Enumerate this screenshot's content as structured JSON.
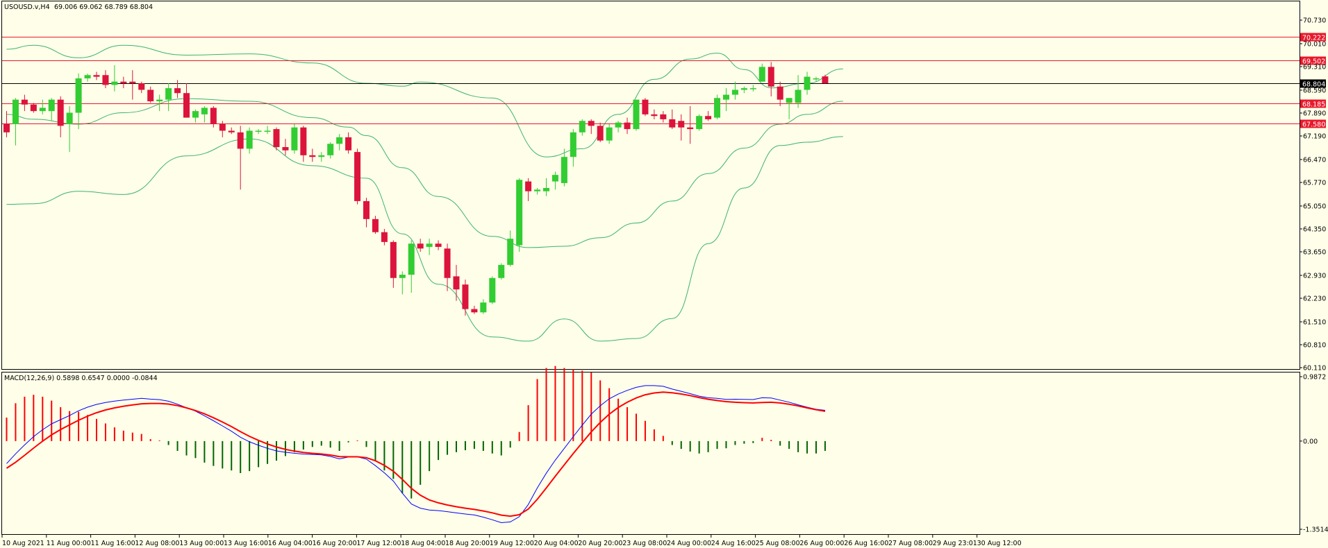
{
  "chart_header": {
    "symbol": "USOUSD.v,H4",
    "ohlc": "69.006 69.062 68.789 68.804"
  },
  "macd_header": {
    "label": "MACD(12,26,9) 0.5898 0.6547 0.0000 -0.0844"
  },
  "price_axis": {
    "ticks": [
      "70.730",
      "70.010",
      "69.310",
      "68.590",
      "67.890",
      "67.190",
      "66.470",
      "65.770",
      "65.050",
      "64.350",
      "63.650",
      "62.930",
      "62.230",
      "61.510",
      "60.810",
      "60.110"
    ]
  },
  "price_lines": [
    {
      "label": "70.222",
      "color": "#e8192c"
    },
    {
      "label": "69.502",
      "color": "#e8192c"
    },
    {
      "label": "68.804",
      "color": "#000000"
    },
    {
      "label": "68.185",
      "color": "#e8192c"
    },
    {
      "label": "67.580",
      "color": "#e8192c"
    }
  ],
  "macd_axis": {
    "ticks": [
      "0.9872",
      "0.00",
      "-1.3514"
    ]
  },
  "time_axis": {
    "labels": [
      "10 Aug 2021",
      "11 Aug 00:00",
      "11 Aug 16:00",
      "12 Aug 08:00",
      "13 Aug 00:00",
      "13 Aug 16:00",
      "16 Aug 04:00",
      "16 Aug 20:00",
      "17 Aug 12:00",
      "18 Aug 04:00",
      "18 Aug 20:00",
      "19 Aug 12:00",
      "20 Aug 04:00",
      "20 Aug 20:00",
      "23 Aug 08:00",
      "24 Aug 00:00",
      "24 Aug 16:00",
      "25 Aug 08:00",
      "26 Aug 00:00",
      "26 Aug 16:00",
      "27 Aug 08:00",
      "29 Aug 23:01",
      "30 Aug 12:00"
    ]
  },
  "colors": {
    "background": "#fefee9",
    "bull": "#32cd32",
    "bear": "#dc143c",
    "bands": "#3cb371",
    "macd_line": "#0000ff",
    "signal_line": "#ff0000",
    "hist_pos": "#ff0000",
    "hist_neg": "#006400"
  },
  "chart_data": {
    "type": "candlestick",
    "ylim": [
      60.11,
      70.73
    ],
    "candles": [
      {
        "o": 67.55,
        "h": 67.95,
        "l": 67.15,
        "c": 67.3
      },
      {
        "o": 67.55,
        "h": 68.35,
        "l": 66.9,
        "c": 68.3
      },
      {
        "o": 68.3,
        "h": 68.45,
        "l": 67.95,
        "c": 68.15
      },
      {
        "o": 68.15,
        "h": 68.2,
        "l": 67.9,
        "c": 67.95
      },
      {
        "o": 67.95,
        "h": 68.3,
        "l": 67.85,
        "c": 68.05
      },
      {
        "o": 67.95,
        "h": 68.35,
        "l": 67.65,
        "c": 68.3
      },
      {
        "o": 68.3,
        "h": 68.4,
        "l": 67.15,
        "c": 67.5
      },
      {
        "o": 67.55,
        "h": 68.1,
        "l": 66.7,
        "c": 67.9
      },
      {
        "o": 67.9,
        "h": 69.1,
        "l": 67.4,
        "c": 68.95
      },
      {
        "o": 68.95,
        "h": 69.1,
        "l": 68.85,
        "c": 69.05
      },
      {
        "o": 69.05,
        "h": 69.15,
        "l": 68.9,
        "c": 69.0
      },
      {
        "o": 69.05,
        "h": 69.2,
        "l": 68.65,
        "c": 68.75
      },
      {
        "o": 68.75,
        "h": 69.35,
        "l": 68.55,
        "c": 68.85
      },
      {
        "o": 68.85,
        "h": 69.0,
        "l": 68.65,
        "c": 68.8
      },
      {
        "o": 68.85,
        "h": 69.2,
        "l": 68.3,
        "c": 68.8
      },
      {
        "o": 68.8,
        "h": 68.85,
        "l": 68.5,
        "c": 68.6
      },
      {
        "o": 68.6,
        "h": 68.7,
        "l": 68.2,
        "c": 68.25
      },
      {
        "o": 68.25,
        "h": 68.45,
        "l": 67.95,
        "c": 68.3
      },
      {
        "o": 68.3,
        "h": 68.8,
        "l": 67.95,
        "c": 68.65
      },
      {
        "o": 68.65,
        "h": 68.9,
        "l": 68.35,
        "c": 68.5
      },
      {
        "o": 68.5,
        "h": 68.8,
        "l": 67.75,
        "c": 67.75
      },
      {
        "o": 67.75,
        "h": 68.0,
        "l": 67.6,
        "c": 67.95
      },
      {
        "o": 67.85,
        "h": 68.1,
        "l": 67.6,
        "c": 68.05
      },
      {
        "o": 68.05,
        "h": 68.1,
        "l": 67.45,
        "c": 67.55
      },
      {
        "o": 67.55,
        "h": 67.65,
        "l": 67.15,
        "c": 67.35
      },
      {
        "o": 67.35,
        "h": 67.45,
        "l": 67.25,
        "c": 67.3
      },
      {
        "o": 67.3,
        "h": 67.5,
        "l": 65.55,
        "c": 66.8
      },
      {
        "o": 66.8,
        "h": 67.45,
        "l": 66.65,
        "c": 67.35
      },
      {
        "o": 67.35,
        "h": 67.4,
        "l": 67.25,
        "c": 67.35
      },
      {
        "o": 67.35,
        "h": 67.5,
        "l": 67.25,
        "c": 67.35
      },
      {
        "o": 67.4,
        "h": 67.45,
        "l": 66.75,
        "c": 66.85
      },
      {
        "o": 66.85,
        "h": 67.1,
        "l": 66.6,
        "c": 66.75
      },
      {
        "o": 66.75,
        "h": 67.55,
        "l": 66.65,
        "c": 67.45
      },
      {
        "o": 67.45,
        "h": 67.5,
        "l": 66.4,
        "c": 66.6
      },
      {
        "o": 66.6,
        "h": 66.8,
        "l": 66.4,
        "c": 66.55
      },
      {
        "o": 66.55,
        "h": 66.7,
        "l": 66.4,
        "c": 66.6
      },
      {
        "o": 66.6,
        "h": 67.0,
        "l": 66.5,
        "c": 66.95
      },
      {
        "o": 66.95,
        "h": 67.25,
        "l": 66.75,
        "c": 67.15
      },
      {
        "o": 67.15,
        "h": 67.3,
        "l": 66.65,
        "c": 66.75
      },
      {
        "o": 66.7,
        "h": 66.8,
        "l": 65.1,
        "c": 65.2
      },
      {
        "o": 65.2,
        "h": 65.3,
        "l": 64.4,
        "c": 64.65
      },
      {
        "o": 64.65,
        "h": 64.75,
        "l": 64.2,
        "c": 64.25
      },
      {
        "o": 64.25,
        "h": 64.35,
        "l": 63.85,
        "c": 63.95
      },
      {
        "o": 63.95,
        "h": 64.0,
        "l": 62.55,
        "c": 62.85
      },
      {
        "o": 62.85,
        "h": 63.05,
        "l": 62.35,
        "c": 62.95
      },
      {
        "o": 62.95,
        "h": 64.0,
        "l": 62.4,
        "c": 63.9
      },
      {
        "o": 63.9,
        "h": 64.05,
        "l": 63.65,
        "c": 63.75
      },
      {
        "o": 63.8,
        "h": 64.05,
        "l": 63.55,
        "c": 63.9
      },
      {
        "o": 63.9,
        "h": 64.0,
        "l": 63.7,
        "c": 63.8
      },
      {
        "o": 63.75,
        "h": 63.9,
        "l": 62.45,
        "c": 62.85
      },
      {
        "o": 62.9,
        "h": 63.25,
        "l": 62.15,
        "c": 62.5
      },
      {
        "o": 62.65,
        "h": 62.8,
        "l": 61.7,
        "c": 61.9
      },
      {
        "o": 61.9,
        "h": 62.0,
        "l": 61.75,
        "c": 61.8
      },
      {
        "o": 61.8,
        "h": 62.2,
        "l": 61.75,
        "c": 62.1
      },
      {
        "o": 62.1,
        "h": 62.9,
        "l": 62.05,
        "c": 62.85
      },
      {
        "o": 62.85,
        "h": 63.3,
        "l": 62.8,
        "c": 63.25
      },
      {
        "o": 63.25,
        "h": 64.3,
        "l": 63.2,
        "c": 64.05
      },
      {
        "o": 63.85,
        "h": 65.9,
        "l": 63.65,
        "c": 65.85
      },
      {
        "o": 65.8,
        "h": 65.9,
        "l": 65.2,
        "c": 65.5
      },
      {
        "o": 65.5,
        "h": 65.6,
        "l": 65.4,
        "c": 65.55
      },
      {
        "o": 65.5,
        "h": 65.9,
        "l": 65.35,
        "c": 65.6
      },
      {
        "o": 65.8,
        "h": 66.1,
        "l": 65.55,
        "c": 66.0
      },
      {
        "o": 65.75,
        "h": 66.8,
        "l": 65.65,
        "c": 66.55
      },
      {
        "o": 66.55,
        "h": 67.4,
        "l": 66.25,
        "c": 67.3
      },
      {
        "o": 67.3,
        "h": 67.7,
        "l": 67.2,
        "c": 67.65
      },
      {
        "o": 67.65,
        "h": 67.7,
        "l": 67.25,
        "c": 67.5
      },
      {
        "o": 67.5,
        "h": 67.6,
        "l": 67.0,
        "c": 67.05
      },
      {
        "o": 67.05,
        "h": 67.55,
        "l": 66.95,
        "c": 67.45
      },
      {
        "o": 67.45,
        "h": 67.65,
        "l": 67.3,
        "c": 67.6
      },
      {
        "o": 67.6,
        "h": 67.75,
        "l": 67.25,
        "c": 67.4
      },
      {
        "o": 67.4,
        "h": 68.3,
        "l": 67.35,
        "c": 68.3
      },
      {
        "o": 68.3,
        "h": 68.35,
        "l": 67.8,
        "c": 67.85
      },
      {
        "o": 67.85,
        "h": 68.0,
        "l": 67.7,
        "c": 67.8
      },
      {
        "o": 67.85,
        "h": 67.95,
        "l": 67.6,
        "c": 67.7
      },
      {
        "o": 67.7,
        "h": 68.0,
        "l": 67.4,
        "c": 67.45
      },
      {
        "o": 67.65,
        "h": 67.85,
        "l": 67.05,
        "c": 67.45
      },
      {
        "o": 67.45,
        "h": 68.1,
        "l": 66.95,
        "c": 67.4
      },
      {
        "o": 67.4,
        "h": 67.85,
        "l": 67.35,
        "c": 67.8
      },
      {
        "o": 67.8,
        "h": 67.95,
        "l": 67.65,
        "c": 67.7
      },
      {
        "o": 67.75,
        "h": 68.45,
        "l": 67.7,
        "c": 68.35
      },
      {
        "o": 68.3,
        "h": 68.65,
        "l": 67.95,
        "c": 68.45
      },
      {
        "o": 68.45,
        "h": 68.85,
        "l": 68.3,
        "c": 68.6
      },
      {
        "o": 68.6,
        "h": 68.7,
        "l": 68.5,
        "c": 68.65
      },
      {
        "o": 68.65,
        "h": 68.75,
        "l": 68.55,
        "c": 68.65
      },
      {
        "o": 68.85,
        "h": 69.4,
        "l": 68.85,
        "c": 69.3
      },
      {
        "o": 69.3,
        "h": 69.45,
        "l": 68.4,
        "c": 68.7
      },
      {
        "o": 68.7,
        "h": 68.85,
        "l": 68.1,
        "c": 68.3
      },
      {
        "o": 68.2,
        "h": 68.35,
        "l": 67.7,
        "c": 68.35
      },
      {
        "o": 68.2,
        "h": 69.05,
        "l": 68.05,
        "c": 68.6
      },
      {
        "o": 68.6,
        "h": 69.15,
        "l": 68.45,
        "c": 69.0
      },
      {
        "o": 68.95,
        "h": 69.0,
        "l": 68.85,
        "c": 68.95
      },
      {
        "o": 69.01,
        "h": 69.06,
        "l": 68.79,
        "c": 68.8
      }
    ],
    "bb_upper": [
      [
        0,
        69.84
      ],
      [
        3,
        69.96
      ],
      [
        8,
        69.58
      ],
      [
        13,
        69.96
      ],
      [
        20,
        69.66
      ],
      [
        27,
        69.7
      ],
      [
        34,
        69.42
      ],
      [
        40,
        68.8
      ],
      [
        44,
        68.71
      ],
      [
        46,
        68.84
      ],
      [
        54,
        68.35
      ],
      [
        60,
        66.55
      ],
      [
        64,
        66.8
      ],
      [
        68,
        67.85
      ],
      [
        72,
        68.92
      ],
      [
        76,
        69.54
      ],
      [
        79,
        69.72
      ],
      [
        82,
        69.22
      ],
      [
        85,
        68.66
      ],
      [
        89,
        68.8
      ],
      [
        93,
        69.24
      ]
    ],
    "bb_middle": [
      [
        0,
        67.85
      ],
      [
        3,
        67.7
      ],
      [
        8,
        67.55
      ],
      [
        13,
        67.9
      ],
      [
        20,
        68.33
      ],
      [
        27,
        68.25
      ],
      [
        34,
        67.75
      ],
      [
        38,
        67.46
      ],
      [
        40,
        67.2
      ],
      [
        44,
        66.22
      ],
      [
        48,
        65.34
      ],
      [
        54,
        64.12
      ],
      [
        58,
        63.78
      ],
      [
        62,
        63.82
      ],
      [
        66,
        64.08
      ],
      [
        70,
        64.53
      ],
      [
        74,
        65.2
      ],
      [
        78,
        66.04
      ],
      [
        82,
        66.82
      ],
      [
        86,
        67.55
      ],
      [
        89,
        67.85
      ],
      [
        93,
        68.25
      ]
    ],
    "bb_lower": [
      [
        0,
        65.1
      ],
      [
        3,
        65.12
      ],
      [
        8,
        65.5
      ],
      [
        13,
        65.4
      ],
      [
        20,
        66.58
      ],
      [
        27,
        67.1
      ],
      [
        34,
        66.28
      ],
      [
        40,
        65.9
      ],
      [
        44,
        64.2
      ],
      [
        48,
        62.66
      ],
      [
        54,
        61.05
      ],
      [
        58,
        60.92
      ],
      [
        62,
        61.6
      ],
      [
        66,
        60.92
      ],
      [
        70,
        61.0
      ],
      [
        74,
        61.61
      ],
      [
        78,
        63.9
      ],
      [
        82,
        65.6
      ],
      [
        86,
        66.9
      ],
      [
        89,
        67.0
      ],
      [
        93,
        67.17
      ]
    ],
    "macd": {
      "ylim": [
        -1.3514,
        0.9872
      ],
      "histogram": [
        0.36,
        0.58,
        0.68,
        0.71,
        0.68,
        0.62,
        0.52,
        0.46,
        0.45,
        0.4,
        0.34,
        0.27,
        0.21,
        0.16,
        0.13,
        0.11,
        0.03,
        0.0,
        -0.06,
        -0.15,
        -0.22,
        -0.26,
        -0.33,
        -0.38,
        -0.42,
        -0.45,
        -0.49,
        -0.46,
        -0.4,
        -0.35,
        -0.3,
        -0.23,
        -0.17,
        -0.13,
        -0.09,
        -0.07,
        -0.1,
        -0.15,
        -0.02,
        0.0,
        -0.09,
        -0.3,
        -0.45,
        -0.58,
        -0.8,
        -0.88,
        -0.67,
        -0.46,
        -0.29,
        -0.21,
        -0.17,
        -0.14,
        -0.12,
        -0.15,
        -0.19,
        -0.22,
        -0.1,
        0.14,
        0.55,
        0.95,
        1.12,
        1.15,
        1.12,
        1.1,
        1.08,
        1.05,
        0.93,
        0.81,
        0.65,
        0.52,
        0.42,
        0.31,
        0.18,
        0.08,
        -0.06,
        -0.12,
        -0.16,
        -0.19,
        -0.17,
        -0.12,
        -0.11,
        -0.06,
        -0.04,
        -0.03,
        0.05,
        0.02,
        -0.07,
        -0.12,
        -0.17,
        -0.19,
        -0.19,
        -0.15
      ]
    }
  }
}
